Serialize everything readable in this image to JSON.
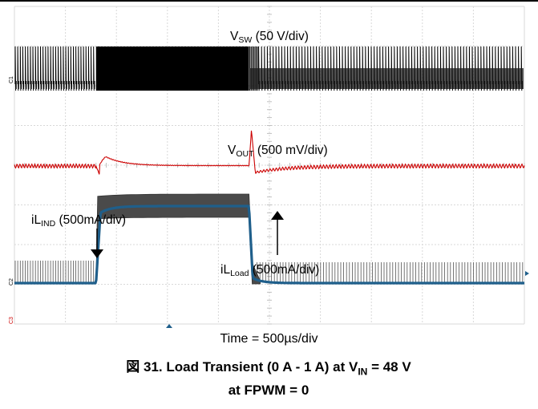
{
  "chart_data": {
    "type": "line",
    "title": "",
    "grid": true,
    "divisions": {
      "x": 10,
      "y": 8
    },
    "time_per_div": "500µs/div",
    "channels": [
      {
        "name": "V",
        "name_sub": "SW",
        "scale": "(50 V/div)",
        "color": "#000000"
      },
      {
        "name": "V",
        "name_sub": "OUT",
        "scale": "(500 mV/div)",
        "color": "#cc0000"
      },
      {
        "name": "iL",
        "name_sub": "Load",
        "scale": "(500mA/div)",
        "color": "#1f5f8b"
      },
      {
        "name": "iL",
        "name_sub": "IND",
        "scale": "(500mA/div)",
        "color": "#000000"
      }
    ],
    "load_current_A": {
      "before": 0,
      "during": 1,
      "after": 0
    },
    "load_step_time_div": {
      "rise": 1.6,
      "fall": 4.6
    },
    "input_voltage_V": 48,
    "fpwm": 0
  },
  "labels": {
    "vsw_main": "V",
    "vsw_sub": "SW",
    "vsw_scale": " (50 V/div)",
    "vout_main": "V",
    "vout_sub": "OUT",
    "vout_scale": " (500 mV/div)",
    "ilind_main": "iL",
    "ilind_sub": "IND",
    "ilind_scale": " (500mA/div)",
    "ilload_main": "iL",
    "ilload_sub": "Load",
    "ilload_scale": " (500mA/div)"
  },
  "time_label": "Time = 500µs/div",
  "caption": {
    "line1_prefix": "図 31. Load Transient (0 A - 1 A) at V",
    "line1_sub": "IN",
    "line1_suffix": " = 48 V",
    "line2": "at FPWM = 0"
  },
  "colors": {
    "vsw": "#000000",
    "vout": "#cc0000",
    "load_current": "#1f5f8b",
    "inductor_envelope": "#4a4a4a",
    "grid": "#d8d8d8"
  }
}
